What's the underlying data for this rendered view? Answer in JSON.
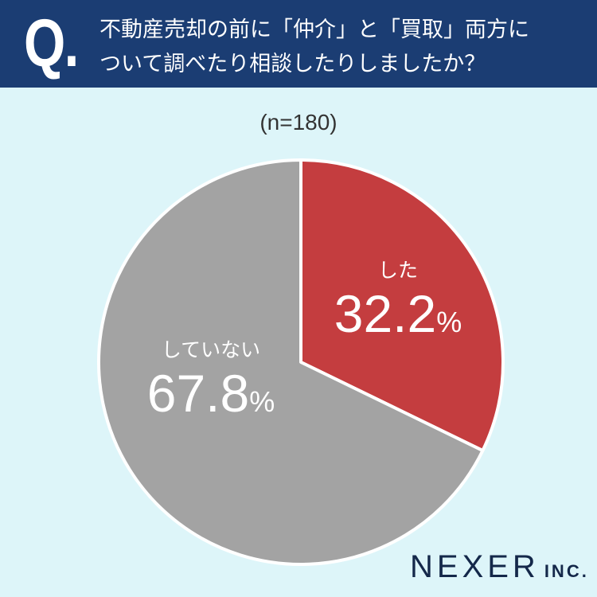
{
  "header": {
    "q_mark": "Q.",
    "question_line1": "不動産売却の前に「仲介」と「買取」両方に",
    "question_line2": "ついて調べたり相談したりしましたか？"
  },
  "sample": "(n=180)",
  "chart_data": {
    "type": "pie",
    "title": "",
    "start": "top",
    "direction": "clockwise",
    "slices": [
      {
        "label": "した",
        "value": 32.2,
        "display": "32.2",
        "unit": "%",
        "color": "#c43d3f"
      },
      {
        "label": "していない",
        "value": 67.8,
        "display": "67.8",
        "unit": "%",
        "color": "#a3a3a3"
      }
    ]
  },
  "colors": {
    "header_bg": "#1b3d73",
    "page_bg": "#ddf5f9",
    "logo": "#14284a"
  },
  "logo": {
    "name": "NEXER",
    "suffix": "INC."
  }
}
